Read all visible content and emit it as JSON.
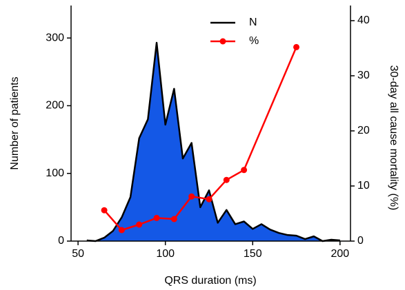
{
  "chart_data": {
    "type": "line",
    "xlabel": "QRS duration (ms)",
    "ylabel": "Number of patients",
    "y2label": "30-day all cause mortality (%)",
    "xlim": [
      46,
      206
    ],
    "xticks": [
      50,
      100,
      150,
      200
    ],
    "ylim": [
      0,
      348
    ],
    "yticks": [
      0,
      100,
      200,
      300
    ],
    "y2lim": [
      0,
      42.75
    ],
    "y2ticks": [
      0,
      10,
      20,
      30,
      40
    ],
    "legend": "top-center",
    "series": [
      {
        "name": "N",
        "color": "#000000",
        "fill": "#1458e6",
        "kind": "area",
        "x": [
          55,
          60,
          65,
          70,
          75,
          80,
          85,
          90,
          95,
          100,
          105,
          110,
          115,
          120,
          125,
          130,
          135,
          140,
          145,
          150,
          155,
          160,
          165,
          170,
          175,
          180,
          185,
          190,
          195,
          200
        ],
        "values": [
          1,
          0,
          5,
          15,
          35,
          65,
          152,
          180,
          293,
          172,
          225,
          122,
          145,
          50,
          75,
          27,
          46,
          25,
          29,
          18,
          25,
          17,
          12,
          9,
          8,
          3,
          7,
          0,
          2,
          1
        ]
      },
      {
        "name": "%",
        "color": "#ff0000",
        "kind": "line",
        "marker": "circle",
        "axis": "y2",
        "x": [
          65,
          75,
          85,
          95,
          105,
          115,
          125,
          135,
          145,
          175
        ],
        "values": [
          5.6,
          2,
          3,
          4.2,
          4,
          8.1,
          7.6,
          11.1,
          12.9,
          35.2
        ]
      }
    ]
  }
}
